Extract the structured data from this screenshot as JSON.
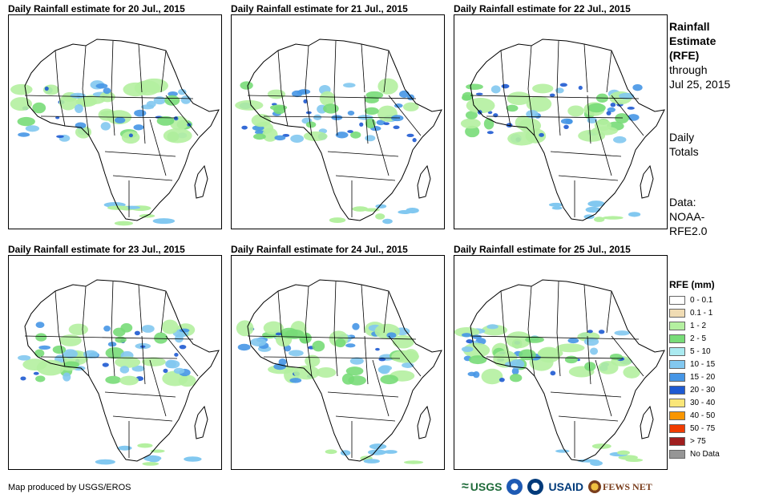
{
  "panels": [
    {
      "title": "Daily Rainfall estimate for 20 Jul., 2015"
    },
    {
      "title": "Daily Rainfall estimate for 21 Jul., 2015"
    },
    {
      "title": "Daily Rainfall estimate for 22 Jul., 2015"
    },
    {
      "title": "Daily Rainfall estimate for 23 Jul., 2015"
    },
    {
      "title": "Daily Rainfall estimate for 24 Jul., 2015"
    },
    {
      "title": "Daily Rainfall estimate for 25 Jul., 2015"
    }
  ],
  "side": {
    "title_line1": "Rainfall",
    "title_line2": "Estimate",
    "title_line3": "(RFE)",
    "through": "through",
    "date": "Jul 25, 2015",
    "daily": "Daily",
    "totals": "Totals",
    "data_label": "Data:",
    "data_src1": "NOAA-",
    "data_src2": "RFE2.0"
  },
  "legend": {
    "title": "RFE (mm)",
    "items": [
      {
        "label": "0 - 0.1",
        "color": "#ffffff"
      },
      {
        "label": "0.1 - 1",
        "color": "#f0dcb4"
      },
      {
        "label": "1 - 2",
        "color": "#b4f0a0"
      },
      {
        "label": "2 - 5",
        "color": "#78dc78"
      },
      {
        "label": "5 - 10",
        "color": "#aaeaf0"
      },
      {
        "label": "10 - 15",
        "color": "#82c8f0"
      },
      {
        "label": "15 - 20",
        "color": "#4696e6"
      },
      {
        "label": "20 - 30",
        "color": "#1e5ad2"
      },
      {
        "label": "30 - 40",
        "color": "#fae678"
      },
      {
        "label": "40 - 50",
        "color": "#fa9600"
      },
      {
        "label": "50 - 75",
        "color": "#f03c00"
      },
      {
        "label": "> 75",
        "color": "#a01e1e"
      },
      {
        "label": "No Data",
        "color": "#969696"
      }
    ]
  },
  "credit": "Map produced by USGS/EROS",
  "logos": {
    "usgs": "USGS",
    "usaid": "USAID",
    "fews": "FEWS NET"
  }
}
